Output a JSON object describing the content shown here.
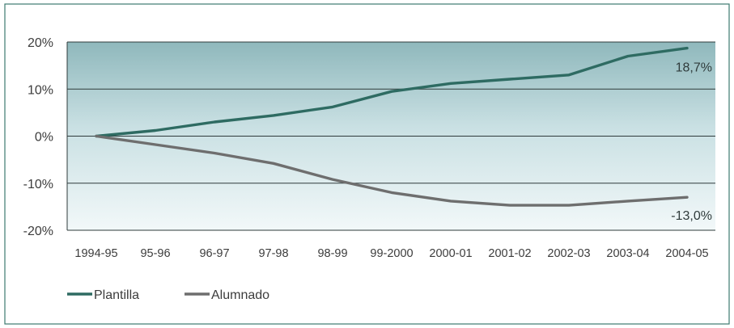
{
  "chart_data": {
    "type": "line",
    "title": "",
    "xlabel": "",
    "ylabel": "",
    "categories": [
      "1994-95",
      "95-96",
      "96-97",
      "97-98",
      "98-99",
      "99-2000",
      "2000-01",
      "2001-02",
      "2002-03",
      "2003-04",
      "2004-05"
    ],
    "ylim": [
      -20,
      20
    ],
    "yticks": [
      20,
      10,
      0,
      -10,
      -20
    ],
    "ytick_labels": [
      "20%",
      "10%",
      "0%",
      "-10%",
      "-20%"
    ],
    "grid": true,
    "legend_position": "bottom-left",
    "series": [
      {
        "name": "Plantilla",
        "color": "#2e6b62",
        "values": [
          0,
          1.2,
          3.0,
          4.4,
          6.2,
          9.5,
          11.2,
          12.1,
          13.0,
          17.0,
          18.7
        ],
        "end_label": "18,7%"
      },
      {
        "name": "Alumnado",
        "color": "#6e6e6e",
        "values": [
          0,
          -1.8,
          -3.6,
          -5.8,
          -9.2,
          -12.0,
          -13.8,
          -14.7,
          -14.7,
          -13.8,
          -13.0
        ],
        "end_label": "-13,0%"
      }
    ],
    "colors": {
      "frame_border": "#3d7a70",
      "plot_top": "#8fb8bc",
      "plot_bottom": "#f2f8f9",
      "grid": "#2f3b3b"
    }
  }
}
